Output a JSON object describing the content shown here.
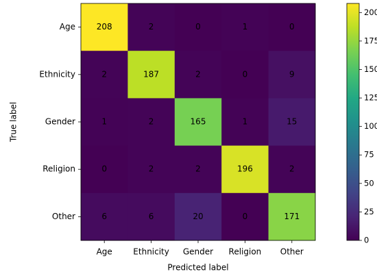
{
  "chart_data": {
    "type": "heatmap",
    "x_categories": [
      "Age",
      "Ethnicity",
      "Gender",
      "Religion",
      "Other"
    ],
    "y_categories": [
      "Age",
      "Ethnicity",
      "Gender",
      "Religion",
      "Other"
    ],
    "z": [
      [
        208,
        2,
        0,
        1,
        0
      ],
      [
        2,
        187,
        2,
        0,
        9
      ],
      [
        1,
        2,
        165,
        1,
        15
      ],
      [
        0,
        2,
        2,
        196,
        2
      ],
      [
        6,
        6,
        20,
        0,
        171
      ]
    ],
    "xlabel": "Predicted label",
    "ylabel": "True label",
    "cmap": "viridis",
    "zlim": [
      0,
      208
    ],
    "colorbar_ticks": [
      0,
      25,
      50,
      75,
      100,
      125,
      150,
      175,
      200
    ]
  }
}
